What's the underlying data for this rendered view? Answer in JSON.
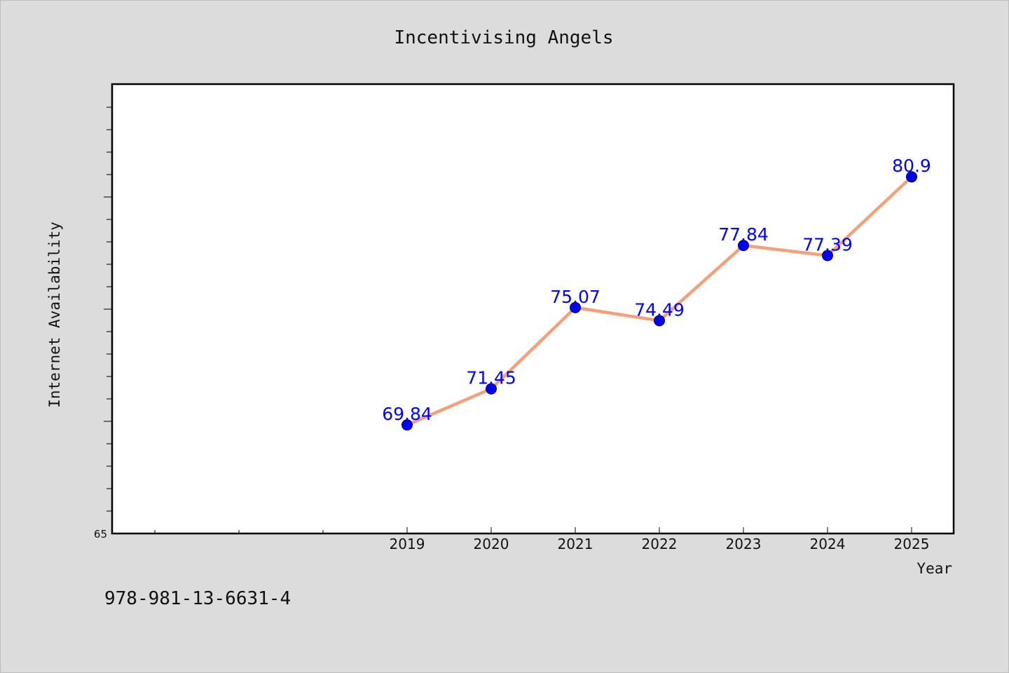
{
  "chart_data": {
    "type": "line",
    "title": "Incentivising Angels",
    "xlabel": "Year",
    "ylabel": "Internet Availability",
    "categories": [
      "2019",
      "2020",
      "2021",
      "2022",
      "2023",
      "2024",
      "2025"
    ],
    "series": [
      {
        "values": [
          69.84,
          71.45,
          75.07,
          74.49,
          77.84,
          77.39,
          80.9
        ]
      }
    ],
    "data_labels": [
      "69.84",
      "71.45",
      "75.07",
      "74.49",
      "77.84",
      "77.39",
      "80.9"
    ],
    "y_tick_label": "65",
    "ylim": [
      65,
      85
    ],
    "colors": {
      "line": "#f5a07a",
      "marker": "#0000ff",
      "label": "#0000ff"
    },
    "grid": false
  },
  "footer": {
    "isbn": "978-981-13-6631-4"
  }
}
